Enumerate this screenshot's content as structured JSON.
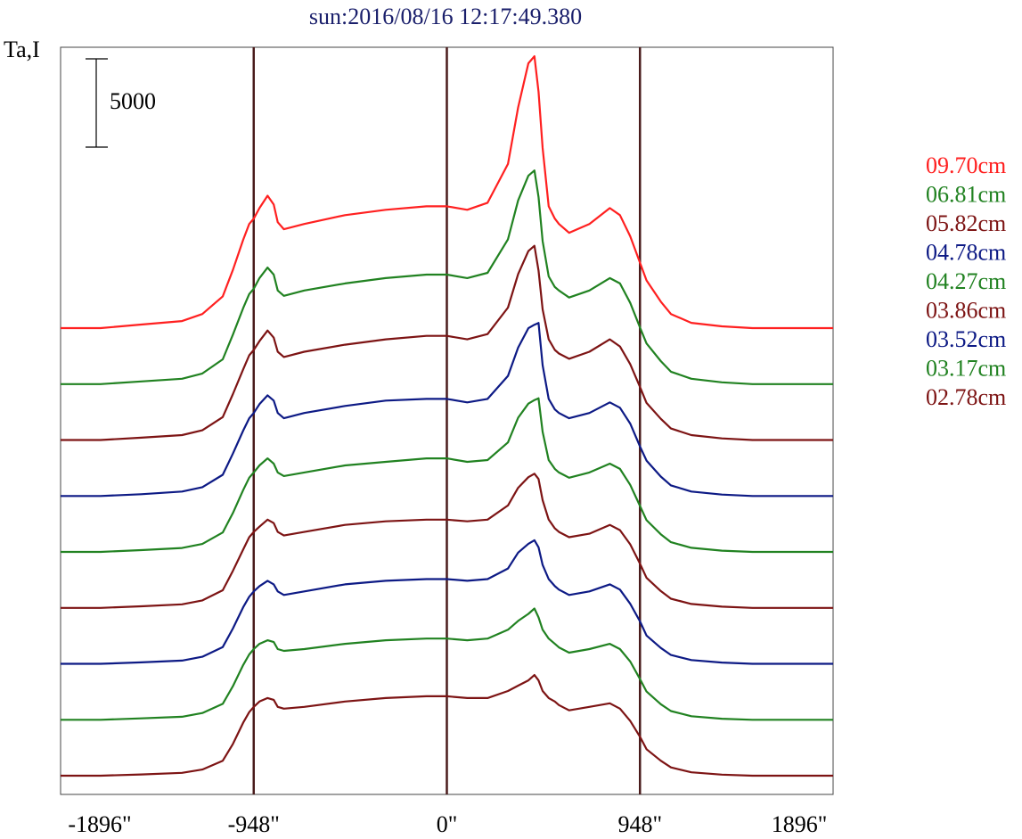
{
  "chart_data": {
    "type": "line",
    "title": "sun:2016/08/16 12:17:49.380",
    "ylabel": "Ta,I",
    "scale_bar_label": "5000",
    "xlim": [
      -1896,
      1896
    ],
    "x_ticks": [
      {
        "value": -1896,
        "label": "-1896\""
      },
      {
        "value": -948,
        "label": "-948\""
      },
      {
        "value": 0,
        "label": "0\""
      },
      {
        "value": 948,
        "label": "948\""
      },
      {
        "value": 1896,
        "label": "1896\""
      }
    ],
    "vertical_lines": [
      -948,
      0,
      948
    ],
    "x": [
      -1896,
      -1700,
      -1500,
      -1300,
      -1200,
      -1100,
      -1050,
      -1000,
      -970,
      -948,
      -920,
      -880,
      -850,
      -830,
      -800,
      -700,
      -500,
      -300,
      -100,
      0,
      100,
      200,
      300,
      350,
      400,
      430,
      450,
      470,
      500,
      530,
      550,
      600,
      700,
      800,
      850,
      900,
      948,
      980,
      1050,
      1100,
      1200,
      1350,
      1500,
      1700,
      1896
    ],
    "series": [
      {
        "name": "09.70cm",
        "color": "#ff2020",
        "y": [
          0,
          0,
          200,
          400,
          800,
          1800,
          3300,
          5000,
          5900,
          6200,
          6800,
          7500,
          7000,
          6000,
          5600,
          5900,
          6400,
          6700,
          6900,
          6900,
          6700,
          7100,
          9300,
          12500,
          15000,
          15400,
          13400,
          10200,
          6900,
          6200,
          5900,
          5400,
          5900,
          6800,
          6400,
          5200,
          3700,
          2700,
          1500,
          800,
          300,
          100,
          0,
          0,
          0
        ]
      },
      {
        "name": "06.81cm",
        "color": "#218221",
        "y": [
          0,
          0,
          150,
          300,
          600,
          1400,
          2800,
          4300,
          5100,
          5400,
          6000,
          6600,
          6200,
          5300,
          5000,
          5300,
          5700,
          6000,
          6200,
          6200,
          6000,
          6300,
          8200,
          10400,
          11800,
          12100,
          10600,
          8100,
          6100,
          5500,
          5300,
          4900,
          5300,
          6000,
          5700,
          4600,
          3200,
          2300,
          1300,
          700,
          300,
          100,
          0,
          0,
          0
        ]
      },
      {
        "name": "05.82cm",
        "color": "#7d1414",
        "y": [
          0,
          0,
          130,
          280,
          550,
          1300,
          2600,
          4000,
          4800,
          5100,
          5600,
          6200,
          5800,
          5000,
          4700,
          5000,
          5400,
          5700,
          5900,
          5900,
          5700,
          6000,
          7500,
          9400,
          10700,
          11000,
          9600,
          7400,
          5700,
          5100,
          4900,
          4600,
          5000,
          5700,
          5300,
          4300,
          3000,
          2100,
          1200,
          650,
          280,
          90,
          0,
          0,
          0
        ]
      },
      {
        "name": "04.78cm",
        "color": "#0d1a85",
        "y": [
          0,
          0,
          100,
          250,
          500,
          1200,
          2400,
          3700,
          4400,
          4700,
          5200,
          5700,
          5400,
          4700,
          4400,
          4700,
          5100,
          5400,
          5500,
          5500,
          5300,
          5500,
          6800,
          8400,
          9500,
          9700,
          9800,
          7400,
          5500,
          4900,
          4700,
          4400,
          4700,
          5300,
          5000,
          4100,
          2800,
          2000,
          1100,
          600,
          250,
          80,
          0,
          0,
          0
        ]
      },
      {
        "name": "04.27cm",
        "color": "#218221",
        "y": [
          0,
          0,
          100,
          220,
          450,
          1100,
          2200,
          3500,
          4200,
          4500,
          4900,
          5300,
          5000,
          4500,
          4300,
          4500,
          4900,
          5100,
          5300,
          5300,
          5100,
          5200,
          6200,
          7600,
          8400,
          8600,
          8700,
          6800,
          5200,
          4700,
          4500,
          4200,
          4500,
          5000,
          4700,
          3800,
          2600,
          1800,
          1000,
          550,
          230,
          70,
          0,
          0,
          0
        ]
      },
      {
        "name": "03.86cm",
        "color": "#7d1414",
        "y": [
          0,
          0,
          90,
          200,
          420,
          1000,
          2100,
          3300,
          4000,
          4300,
          4600,
          5000,
          4800,
          4300,
          4100,
          4300,
          4700,
          4900,
          5000,
          5000,
          4900,
          5000,
          5800,
          6800,
          7400,
          7600,
          7300,
          6100,
          5000,
          4500,
          4300,
          4000,
          4200,
          4700,
          4400,
          3600,
          2500,
          1700,
          950,
          520,
          220,
          70,
          0,
          0,
          0
        ]
      },
      {
        "name": "03.52cm",
        "color": "#0d1a85",
        "y": [
          0,
          0,
          80,
          180,
          400,
          950,
          2000,
          3200,
          3800,
          4100,
          4400,
          4700,
          4500,
          4100,
          3900,
          4100,
          4500,
          4700,
          4800,
          4800,
          4700,
          4800,
          5400,
          6300,
          6800,
          7000,
          6600,
          5600,
          4800,
          4400,
          4200,
          3900,
          4100,
          4500,
          4200,
          3400,
          2400,
          1600,
          900,
          500,
          210,
          70,
          0,
          0,
          0
        ]
      },
      {
        "name": "03.17cm",
        "color": "#218221",
        "y": [
          0,
          0,
          80,
          170,
          380,
          900,
          1900,
          3100,
          3700,
          4000,
          4300,
          4500,
          4400,
          4000,
          3900,
          4000,
          4300,
          4500,
          4600,
          4600,
          4500,
          4600,
          5100,
          5600,
          6000,
          6300,
          5800,
          5100,
          4600,
          4300,
          4100,
          3800,
          4000,
          4300,
          4000,
          3300,
          2300,
          1600,
          880,
          490,
          200,
          60,
          0,
          0,
          0
        ]
      },
      {
        "name": "02.78cm",
        "color": "#7d1414",
        "y": [
          0,
          0,
          70,
          160,
          350,
          850,
          1800,
          3000,
          3600,
          3900,
          4200,
          4400,
          4300,
          3900,
          3800,
          3900,
          4200,
          4400,
          4500,
          4500,
          4400,
          4400,
          4800,
          5100,
          5400,
          5700,
          5400,
          4800,
          4400,
          4200,
          4000,
          3700,
          3900,
          4100,
          3800,
          3100,
          2200,
          1500,
          850,
          470,
          190,
          60,
          0,
          0,
          0
        ]
      }
    ]
  }
}
